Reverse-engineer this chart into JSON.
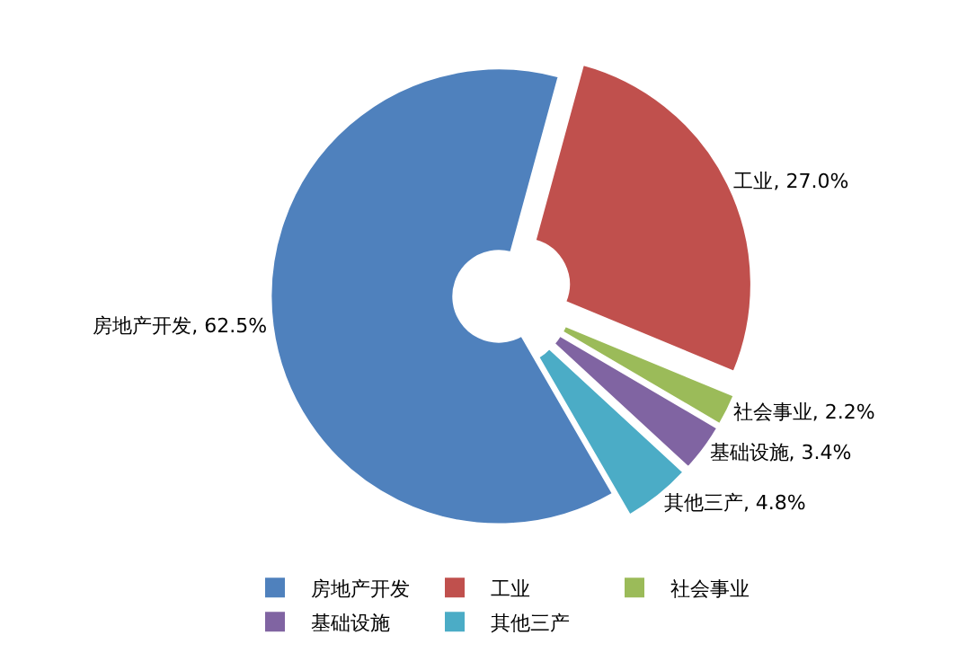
{
  "chart_data": {
    "type": "donut",
    "categories": [
      "房地产开发",
      "工业",
      "社会事业",
      "基础设施",
      "其他三产"
    ],
    "values": [
      62.5,
      27.0,
      2.2,
      3.4,
      4.8
    ],
    "value_labels": [
      "房地产开发, 62.5%",
      "工业, 27.0%",
      "社会事业, 2.2%",
      "基础设施, 3.4%",
      "其他三产, 4.8%"
    ],
    "colors": [
      "#4f81bd",
      "#c0504d",
      "#9bbb59",
      "#8064a2",
      "#4bacc6"
    ],
    "legend": "bottom"
  }
}
